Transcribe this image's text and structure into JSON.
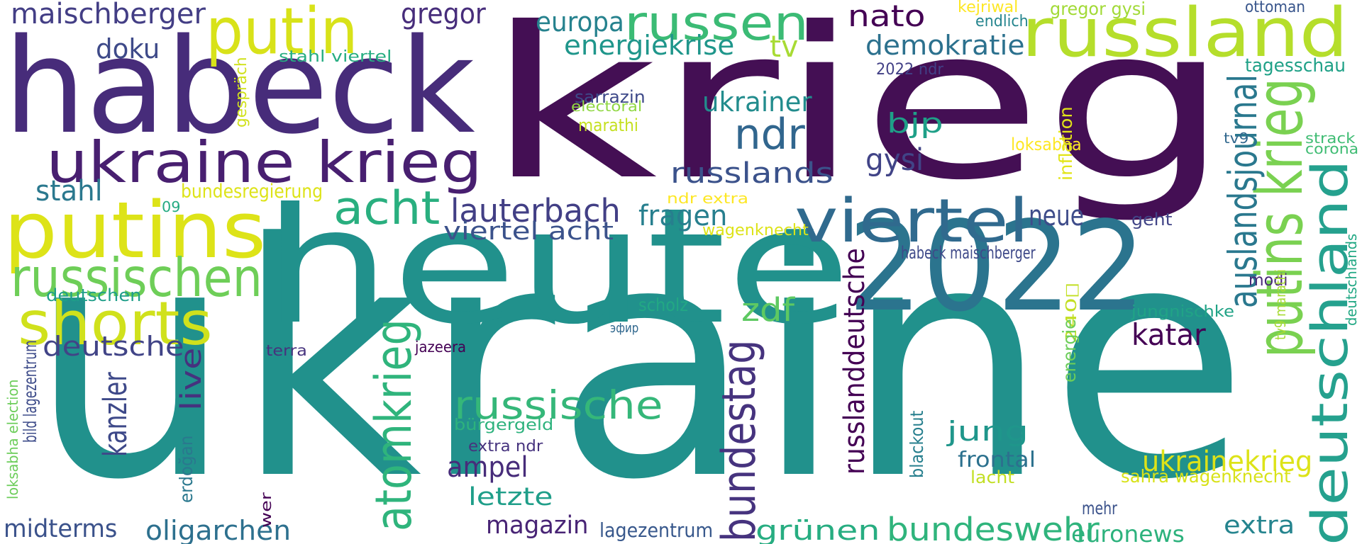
{
  "words": [
    {
      "text": "krieg",
      "color": "#440f54"
    },
    {
      "text": "ukraine",
      "color": "#21918c"
    },
    {
      "text": "heute",
      "color": "#21918c"
    },
    {
      "text": "habeck",
      "color": "#472c7a"
    },
    {
      "text": "2022",
      "color": "#2b748e"
    },
    {
      "text": "russland",
      "color": "#b5de2b"
    },
    {
      "text": "russen",
      "color": "#3bbb75"
    },
    {
      "text": "putin",
      "color": "#d8e219"
    },
    {
      "text": "putins",
      "color": "#dde318"
    },
    {
      "text": "ukraine krieg",
      "color": "#481f70"
    },
    {
      "text": "viertel",
      "color": "#306a8e"
    },
    {
      "text": "deutschland",
      "color": "#25a18e"
    },
    {
      "text": "putins krieg",
      "color": "#7ad151"
    },
    {
      "text": "russischen",
      "color": "#6ece58"
    },
    {
      "text": "shorts",
      "color": "#d0e11c"
    },
    {
      "text": "acht",
      "color": "#29af7f"
    },
    {
      "text": "ndr",
      "color": "#31668e"
    },
    {
      "text": "maischberger",
      "color": "#433e85"
    },
    {
      "text": "gregor",
      "color": "#472d7b"
    },
    {
      "text": "europa",
      "color": "#26828e"
    },
    {
      "text": "nato",
      "color": "#440154"
    },
    {
      "text": "energiekrise",
      "color": "#1f968b"
    },
    {
      "text": "tv",
      "color": "#a8db34"
    },
    {
      "text": "demokratie",
      "color": "#2c718e"
    },
    {
      "text": "doku",
      "color": "#3e4a89"
    },
    {
      "text": "ukrainer",
      "color": "#228c8d"
    },
    {
      "text": "lauterbach",
      "color": "#423f85"
    },
    {
      "text": "russlands",
      "color": "#3b528b"
    },
    {
      "text": "viertel acht",
      "color": "#3b528b"
    },
    {
      "text": "fragen",
      "color": "#277f8e"
    },
    {
      "text": "bjp",
      "color": "#1fa088"
    },
    {
      "text": "gysi",
      "color": "#414487"
    },
    {
      "text": "neue",
      "color": "#3e4c8a"
    },
    {
      "text": "stahl",
      "color": "#2a788e"
    },
    {
      "text": "bundesregierung",
      "color": "#dde318"
    },
    {
      "text": "auslandsjournal",
      "color": "#2a788e"
    },
    {
      "text": "russische",
      "color": "#35b779"
    },
    {
      "text": "atomkrieg",
      "color": "#2fb47c"
    },
    {
      "text": "bundestag",
      "color": "#46337e"
    },
    {
      "text": "russlanddeutsche",
      "color": "#440154"
    },
    {
      "text": "zdf",
      "color": "#5ec962"
    },
    {
      "text": "katar",
      "color": "#440154"
    },
    {
      "text": "deutsche",
      "color": "#414487"
    },
    {
      "text": "kanzler",
      "color": "#3e4989"
    },
    {
      "text": "live",
      "color": "#46327e"
    },
    {
      "text": "ampel",
      "color": "#472c7a"
    },
    {
      "text": "letzte",
      "color": "#1f9e89"
    },
    {
      "text": "magazin",
      "color": "#482475"
    },
    {
      "text": "jung",
      "color": "#1f968b"
    },
    {
      "text": "ukrainekrieg",
      "color": "#dde318"
    },
    {
      "text": "bundeswehr",
      "color": "#2fb47c"
    },
    {
      "text": "grünen",
      "color": "#27ad81"
    },
    {
      "text": "euronews",
      "color": "#2db27d"
    },
    {
      "text": "extra",
      "color": "#25848e"
    },
    {
      "text": "midterms",
      "color": "#3b528b"
    },
    {
      "text": "oligarchen",
      "color": "#2d708e"
    },
    {
      "text": "lagezentrum",
      "color": "#38588c"
    },
    {
      "text": "frontal",
      "color": "#2c718e"
    },
    {
      "text": "lacht",
      "color": "#c2df23"
    },
    {
      "text": "sahra wagenknecht",
      "color": "#d8e219"
    },
    {
      "text": "kejriwal",
      "color": "#fde725"
    },
    {
      "text": "gregor gysi",
      "color": "#a2da37"
    },
    {
      "text": "ottoman",
      "color": "#39568c"
    },
    {
      "text": "endlich",
      "color": "#25858e"
    },
    {
      "text": "tagesschau",
      "color": "#1fa187"
    },
    {
      "text": "stahl viertel",
      "color": "#26ad81"
    },
    {
      "text": "gespräch",
      "color": "#d0e11c"
    },
    {
      "text": "2022 ndr",
      "color": "#424086"
    },
    {
      "text": "sarrazin",
      "color": "#3e4989"
    },
    {
      "text": "electoral",
      "color": "#90d743"
    },
    {
      "text": "marathi",
      "color": "#c5e021"
    },
    {
      "text": "loksabha",
      "color": "#fde725"
    },
    {
      "text": "inflation",
      "color": "#e2e418"
    },
    {
      "text": "tv9",
      "color": "#31688e"
    },
    {
      "text": "strack",
      "color": "#3fbc73"
    },
    {
      "text": "corona",
      "color": "#3fbc73"
    },
    {
      "text": "ndr extra",
      "color": "#fde725"
    },
    {
      "text": "wagenknecht",
      "color": "#dde318"
    },
    {
      "text": "09",
      "color": "#25ab82"
    },
    {
      "text": "geht",
      "color": "#414487"
    },
    {
      "text": "habeck maischberger",
      "color": "#3e4989"
    },
    {
      "text": "modi",
      "color": "#482878"
    },
    {
      "text": "240⃣",
      "color": "#c2df23"
    },
    {
      "text": "tv9 marathi",
      "color": "#a8db34"
    },
    {
      "text": "deutschlands",
      "color": "#22a884"
    },
    {
      "text": "deutschen",
      "color": "#1f9e89"
    },
    {
      "text": "scholz",
      "color": "#22a884"
    },
    {
      "text": "jungnischke",
      "color": "#20a386"
    },
    {
      "text": "эфир",
      "color": "#31688e"
    },
    {
      "text": "terra",
      "color": "#46337e"
    },
    {
      "text": "jazeera",
      "color": "#440154"
    },
    {
      "text": "energie",
      "color": "#6ccd5a"
    },
    {
      "text": "bürgergeld",
      "color": "#2db27d"
    },
    {
      "text": "extra ndr",
      "color": "#46337e"
    },
    {
      "text": "blackout",
      "color": "#277f8e"
    },
    {
      "text": "bild lagezentrum",
      "color": "#3e4c8a"
    },
    {
      "text": "loksabha election",
      "color": "#6ccd5a"
    },
    {
      "text": "erdoğan",
      "color": "#2a788e"
    },
    {
      "text": "wer",
      "color": "#440154"
    },
    {
      "text": "mehr",
      "color": "#3b528b"
    }
  ]
}
